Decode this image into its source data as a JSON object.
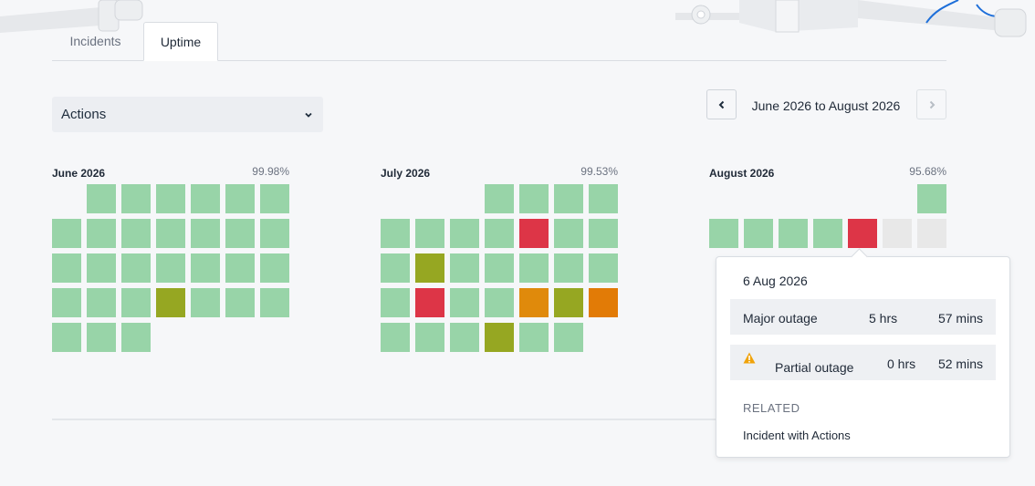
{
  "tabs": [
    {
      "label": "Incidents",
      "active": false
    },
    {
      "label": "Uptime",
      "active": true
    }
  ],
  "actions": {
    "label": "Actions",
    "icon": "chevron-down-icon"
  },
  "date_nav": {
    "range_label": "June 2026 to August 2026",
    "prev_icon": "chevron-left-icon",
    "next_icon": "chevron-right-icon",
    "next_enabled": false
  },
  "status_colors": {
    "operational": "#98d4a8",
    "degraded": "#96a722",
    "partial": "#e08a0b",
    "partial_dark": "#e27b06",
    "major": "#dd3547",
    "future": "#e8e8e8"
  },
  "months": [
    {
      "name": "June 2026",
      "uptime": "99.98%",
      "start_offset": 1,
      "days": [
        "operational",
        "operational",
        "operational",
        "operational",
        "operational",
        "operational",
        "operational",
        "operational",
        "operational",
        "operational",
        "operational",
        "operational",
        "operational",
        "operational",
        "operational",
        "operational",
        "operational",
        "operational",
        "operational",
        "operational",
        "operational",
        "operational",
        "operational",
        "degraded",
        "operational",
        "operational",
        "operational",
        "operational",
        "operational",
        "operational"
      ]
    },
    {
      "name": "July 2026",
      "uptime": "99.53%",
      "start_offset": 3,
      "days": [
        "operational",
        "operational",
        "operational",
        "operational",
        "operational",
        "operational",
        "operational",
        "operational",
        "major",
        "operational",
        "operational",
        "operational",
        "degraded",
        "operational",
        "operational",
        "operational",
        "operational",
        "operational",
        "operational",
        "major",
        "operational",
        "operational",
        "partial",
        "degraded",
        "partial_dark",
        "operational",
        "operational",
        "operational",
        "degraded",
        "operational",
        "operational"
      ]
    },
    {
      "name": "August 2026",
      "uptime": "95.68%",
      "start_offset": 6,
      "days": [
        "operational",
        "operational",
        "operational",
        "operational",
        "operational",
        "major",
        "future",
        "future"
      ]
    }
  ],
  "popover": {
    "date": "6 Aug 2026",
    "rows": [
      {
        "label": "Major outage",
        "hours": "5 hrs",
        "mins": "57 mins",
        "icon": ""
      },
      {
        "label": "Partial outage",
        "hours": "0 hrs",
        "mins": "52 mins",
        "icon": "warning-icon"
      }
    ],
    "related_heading": "RELATED",
    "related_link": "Incident with Actions"
  }
}
